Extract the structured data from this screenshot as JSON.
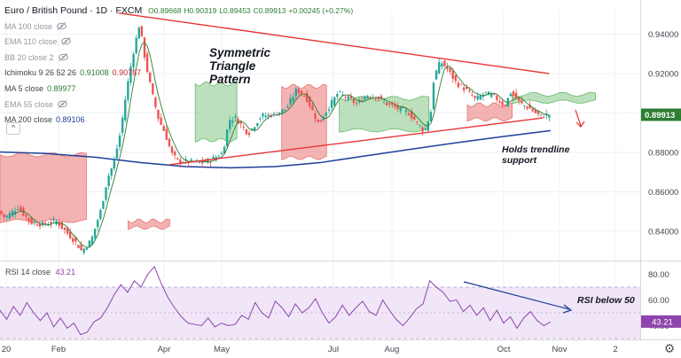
{
  "legend": {
    "symbol": "Euro / British Pound · 1D · FXCM",
    "ohlc": {
      "o": "O0.89668",
      "h": "H0.90319",
      "l": "L0.89453",
      "c": "C0.89913",
      "chg": "+0.00245 (+0.27%)"
    },
    "indicators": [
      {
        "label": "MA 100 close",
        "value": "",
        "hidden": true
      },
      {
        "label": "EMA 110 close",
        "value": "",
        "hidden": true
      },
      {
        "label": "BB 20 close 2",
        "value": "",
        "hidden": true
      },
      {
        "label": "Ichimoku 9 26 52 26",
        "value": "0.91008",
        "value2": "0.90787",
        "hidden": false
      },
      {
        "label": "MA 5 close",
        "value": "0.89977",
        "hidden": false
      },
      {
        "label": "EMA 55 close",
        "value": "",
        "hidden": true
      },
      {
        "label": "MA 200 close",
        "value": "0.89106",
        "hidden": false
      }
    ],
    "collapse_glyph": "^"
  },
  "rsi_legend": {
    "label": "RSI 14 close",
    "value": "43.21"
  },
  "annotations": {
    "pattern": "Symmetric Triangle Pattern",
    "support": "Holds trendline support",
    "rsi": "RSI below 50"
  },
  "price_badge": "0.89913",
  "settings_icon": "gear-icon",
  "colors": {
    "up": "#26a69a",
    "down": "#ef5350",
    "trendline": "#e83333",
    "ma200": "#1f3f99",
    "ma5": "#2e7d32",
    "cloud_bull": "#a5d6a7",
    "cloud_bear": "#ef9a9a",
    "rsi": "#8e44ad",
    "rsi_band": "#e9dcf5",
    "badge": "#2e7d32",
    "rsi_arrow": "#1a3d8f"
  },
  "chart_data": [
    {
      "type": "candlestick",
      "title": "Euro / British Pound · 1D · FXCM",
      "x_ticks": [
        "20",
        "Feb",
        "Apr",
        "May",
        "Jul",
        "Aug",
        "Oct",
        "Nov",
        "2"
      ],
      "y_ticks": [
        0.84,
        0.86,
        0.88,
        0.9,
        0.92,
        0.94
      ],
      "ylim": [
        0.826,
        0.952
      ],
      "last_price": 0.89913,
      "overview_close_path": [
        [
          0,
          0.8502
        ],
        [
          0.01,
          0.8468
        ],
        [
          0.03,
          0.8522
        ],
        [
          0.05,
          0.8445
        ],
        [
          0.07,
          0.8432
        ],
        [
          0.09,
          0.8452
        ],
        [
          0.105,
          0.8398
        ],
        [
          0.12,
          0.8345
        ],
        [
          0.13,
          0.8298
        ],
        [
          0.145,
          0.8356
        ],
        [
          0.16,
          0.8512
        ],
        [
          0.17,
          0.8668
        ],
        [
          0.18,
          0.8748
        ],
        [
          0.19,
          0.8898
        ],
        [
          0.2,
          0.9118
        ],
        [
          0.21,
          0.9302
        ],
        [
          0.22,
          0.9452
        ],
        [
          0.23,
          0.9248
        ],
        [
          0.24,
          0.9095
        ],
        [
          0.25,
          0.8968
        ],
        [
          0.26,
          0.8898
        ],
        [
          0.27,
          0.8795
        ],
        [
          0.28,
          0.8755
        ],
        [
          0.3,
          0.8752
        ],
        [
          0.32,
          0.8748
        ],
        [
          0.335,
          0.8768
        ],
        [
          0.35,
          0.8798
        ],
        [
          0.36,
          0.8965
        ],
        [
          0.37,
          0.8975
        ],
        [
          0.39,
          0.8895
        ],
        [
          0.41,
          0.8985
        ],
        [
          0.43,
          0.8992
        ],
        [
          0.45,
          0.9025
        ],
        [
          0.465,
          0.9118
        ],
        [
          0.48,
          0.9082
        ],
        [
          0.5,
          0.8942
        ],
        [
          0.51,
          0.9002
        ],
        [
          0.53,
          0.9102
        ],
        [
          0.545,
          0.9075
        ],
        [
          0.56,
          0.9045
        ],
        [
          0.575,
          0.9092
        ],
        [
          0.59,
          0.9082
        ],
        [
          0.605,
          0.9048
        ],
        [
          0.62,
          0.9028
        ],
        [
          0.64,
          0.9002
        ],
        [
          0.655,
          0.8945
        ],
        [
          0.665,
          0.8905
        ],
        [
          0.675,
          0.9005
        ],
        [
          0.68,
          0.9182
        ],
        [
          0.69,
          0.9262
        ],
        [
          0.7,
          0.9228
        ],
        [
          0.715,
          0.9152
        ],
        [
          0.73,
          0.9118
        ],
        [
          0.745,
          0.9068
        ],
        [
          0.76,
          0.9102
        ],
        [
          0.775,
          0.9082
        ],
        [
          0.79,
          0.9035
        ],
        [
          0.8,
          0.9105
        ],
        [
          0.815,
          0.9048
        ],
        [
          0.83,
          0.9022
        ],
        [
          0.845,
          0.8985
        ],
        [
          0.86,
          0.8991
        ]
      ],
      "ma200": [
        [
          0,
          0.8802
        ],
        [
          0.07,
          0.8795
        ],
        [
          0.15,
          0.8775
        ],
        [
          0.22,
          0.8748
        ],
        [
          0.29,
          0.8728
        ],
        [
          0.36,
          0.8722
        ],
        [
          0.43,
          0.8728
        ],
        [
          0.5,
          0.8748
        ],
        [
          0.57,
          0.8782
        ],
        [
          0.64,
          0.8815
        ],
        [
          0.71,
          0.8848
        ],
        [
          0.78,
          0.8878
        ],
        [
          0.86,
          0.8911
        ]
      ],
      "cloud_blocks": [
        {
          "x": [
            0.0,
            0.135
          ],
          "top": 0.8788,
          "bot": 0.8452,
          "trend": "bearish"
        },
        {
          "x": [
            0.2,
            0.265
          ],
          "top": 0.8452,
          "bot": 0.8418,
          "trend": "bearish"
        },
        {
          "x": [
            0.305,
            0.37
          ],
          "top": 0.9148,
          "bot": 0.8862,
          "trend": "bullish"
        },
        {
          "x": [
            0.44,
            0.51
          ],
          "top": 0.9135,
          "bot": 0.8772,
          "trend": "bearish"
        },
        {
          "x": [
            0.53,
            0.67
          ],
          "top": 0.9075,
          "bot": 0.8912,
          "trend": "bullish"
        },
        {
          "x": [
            0.73,
            0.8
          ],
          "top": 0.9042,
          "bot": 0.8968,
          "trend": "bearish"
        },
        {
          "x": [
            0.8,
            0.93
          ],
          "top": 0.9095,
          "bot": 0.9058,
          "trend": "bullish"
        }
      ],
      "trendlines": [
        {
          "name": "upper",
          "from": [
            0.185,
            0.9508
          ],
          "to": [
            0.858,
            0.92
          ]
        },
        {
          "name": "lower",
          "from": [
            0.265,
            0.8738
          ],
          "to": [
            0.848,
            0.8975
          ]
        }
      ]
    },
    {
      "type": "line",
      "title": "RSI 14 close",
      "y_ticks": [
        40,
        60,
        80
      ],
      "band": [
        30,
        70
      ],
      "ylim": [
        30,
        88
      ],
      "last_value": 43.21,
      "values": [
        52,
        45,
        55,
        48,
        58,
        50,
        44,
        50,
        39,
        46,
        38,
        42,
        33,
        35,
        43,
        46,
        54,
        64,
        72,
        66,
        75,
        70,
        80,
        86,
        73,
        62,
        54,
        47,
        42,
        41,
        40,
        46,
        39,
        42,
        40,
        41,
        48,
        45,
        58,
        50,
        46,
        59,
        54,
        47,
        57,
        50,
        54,
        61,
        50,
        42,
        47,
        56,
        48,
        54,
        59,
        51,
        48,
        60,
        52,
        45,
        40,
        46,
        53,
        57,
        75,
        70,
        66,
        59,
        60,
        51,
        56,
        48,
        54,
        44,
        52,
        42,
        47,
        38,
        46,
        51,
        44,
        40,
        43
      ]
    }
  ]
}
